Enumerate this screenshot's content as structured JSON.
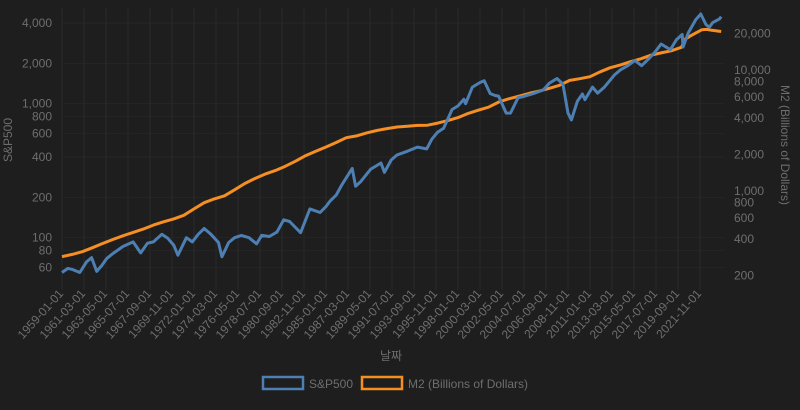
{
  "chart_data": {
    "type": "line",
    "xlabel": "날짜",
    "x_tick_labels": [
      "1959-01-01",
      "1961-03-01",
      "1963-05-01",
      "1965-07-01",
      "1967-09-01",
      "1969-11-01",
      "1972-01-01",
      "1974-03-01",
      "1976-05-01",
      "1978-07-01",
      "1980-09-01",
      "1982-11-01",
      "1985-01-01",
      "1987-03-01",
      "1989-05-01",
      "1991-07-01",
      "1993-09-01",
      "1995-11-01",
      "1998-01-01",
      "2000-03-01",
      "2002-05-01",
      "2004-07-01",
      "2006-09-01",
      "2008-11-01",
      "2011-01-01",
      "2013-03-01",
      "2015-05-01",
      "2017-07-01",
      "2019-09-01",
      "2021-11-01"
    ],
    "x_range": [
      "1959-01-01",
      "2023-12-01"
    ],
    "grid": true,
    "legend_position": "bottom",
    "y_left": {
      "label": "S&P500",
      "scale": "log",
      "range": [
        50,
        5000
      ],
      "ticks": [
        60,
        80,
        100,
        200,
        400,
        600,
        800,
        1000,
        2000,
        4000
      ],
      "tick_labels": [
        "60",
        "80",
        "100",
        "200",
        "400",
        "600",
        "800",
        "1,000",
        "2,000",
        "4,000"
      ]
    },
    "y_right": {
      "label": "M2 (Billions of Dollars)",
      "scale": "log",
      "range": [
        170,
        26000
      ],
      "ticks": [
        200,
        400,
        600,
        800,
        1000,
        2000,
        4000,
        6000,
        8000,
        10000,
        20000
      ],
      "tick_labels": [
        "200",
        "400",
        "600",
        "800",
        "1,000",
        "2,000",
        "4,000",
        "6,000",
        "8,000",
        "10,000",
        "20,000"
      ]
    },
    "series": [
      {
        "name": "S&P500",
        "axis": "left",
        "color": "#4e7fb3",
        "x": [
          "1959-01",
          "1959-08",
          "1960-01",
          "1960-10",
          "1961-06",
          "1961-12",
          "1962-06",
          "1962-12",
          "1963-06",
          "1964-01",
          "1965-01",
          "1966-01",
          "1966-10",
          "1967-06",
          "1968-01",
          "1968-11",
          "1969-06",
          "1970-01",
          "1970-06",
          "1971-04",
          "1971-11",
          "1972-06",
          "1973-01",
          "1973-09",
          "1974-06",
          "1974-10",
          "1975-06",
          "1976-01",
          "1976-09",
          "1977-06",
          "1978-03",
          "1978-09",
          "1979-06",
          "1980-03",
          "1980-11",
          "1981-06",
          "1982-07",
          "1983-06",
          "1984-06",
          "1985-01",
          "1985-06",
          "1986-01",
          "1986-08",
          "1987-08",
          "1987-12",
          "1988-06",
          "1989-06",
          "1990-06",
          "1990-10",
          "1991-06",
          "1992-01",
          "1993-01",
          "1994-01",
          "1994-12",
          "1995-06",
          "1996-01",
          "1996-08",
          "1997-06",
          "1998-01",
          "1998-08",
          "1998-10",
          "1999-06",
          "2000-03",
          "2000-08",
          "2001-03",
          "2001-09",
          "2002-01",
          "2002-10",
          "2003-03",
          "2003-12",
          "2004-06",
          "2005-06",
          "2006-06",
          "2007-01",
          "2007-10",
          "2008-05",
          "2008-11",
          "2009-03",
          "2009-10",
          "2010-04",
          "2010-07",
          "2011-04",
          "2011-10",
          "2012-06",
          "2013-06",
          "2014-01",
          "2014-10",
          "2015-06",
          "2016-02",
          "2016-10",
          "2017-06",
          "2018-01",
          "2018-12",
          "2019-07",
          "2020-02",
          "2020-03",
          "2020-09",
          "2021-06",
          "2021-12",
          "2022-06",
          "2022-10",
          "2023-02",
          "2023-10",
          "2023-12"
        ],
        "values": [
          55,
          59,
          58,
          55,
          66,
          71,
          56,
          62,
          70,
          76,
          86,
          93,
          77,
          91,
          93,
          106,
          99,
          88,
          74,
          100,
          93,
          106,
          117,
          106,
          92,
          72,
          92,
          100,
          104,
          100,
          90,
          104,
          102,
          110,
          136,
          132,
          109,
          164,
          154,
          171,
          188,
          208,
          250,
          329,
          242,
          262,
          325,
          361,
          307,
          380,
          415,
          441,
          474,
          460,
          543,
          614,
          655,
          904,
          963,
          1080,
          1000,
          1330,
          1440,
          1485,
          1190,
          1150,
          1140,
          850,
          850,
          1110,
          1130,
          1190,
          1270,
          1424,
          1540,
          1400,
          850,
          757,
          1040,
          1180,
          1070,
          1330,
          1200,
          1330,
          1640,
          1790,
          1930,
          2100,
          1920,
          2150,
          2440,
          2790,
          2530,
          2990,
          3280,
          2650,
          3370,
          4240,
          4670,
          3900,
          3720,
          4030,
          4290,
          4460
        ]
      },
      {
        "name": "M2 (Billions of Dollars)",
        "axis": "right",
        "color": "#f58f23",
        "x": [
          "1959-01",
          "1960-01",
          "1961-01",
          "1962-01",
          "1963-01",
          "1964-01",
          "1965-01",
          "1966-01",
          "1967-01",
          "1968-01",
          "1969-01",
          "1970-01",
          "1971-01",
          "1972-01",
          "1973-01",
          "1974-01",
          "1975-01",
          "1976-01",
          "1977-01",
          "1978-01",
          "1979-01",
          "1980-01",
          "1981-01",
          "1982-01",
          "1983-01",
          "1984-01",
          "1985-01",
          "1986-01",
          "1987-01",
          "1988-01",
          "1989-01",
          "1990-01",
          "1991-01",
          "1992-01",
          "1993-01",
          "1994-01",
          "1995-01",
          "1996-01",
          "1997-01",
          "1998-01",
          "1999-01",
          "2000-01",
          "2001-01",
          "2002-01",
          "2003-01",
          "2004-01",
          "2005-01",
          "2006-01",
          "2007-01",
          "2008-01",
          "2009-01",
          "2010-01",
          "2011-01",
          "2012-01",
          "2013-01",
          "2014-01",
          "2015-01",
          "2016-01",
          "2017-01",
          "2018-01",
          "2019-01",
          "2020-01",
          "2020-06",
          "2021-01",
          "2022-01",
          "2022-07",
          "2023-01",
          "2023-12"
        ],
        "values": [
          287,
          299,
          315,
          340,
          368,
          397,
          426,
          455,
          484,
          523,
          557,
          588,
          630,
          711,
          800,
          861,
          913,
          1024,
          1153,
          1268,
          1380,
          1475,
          1604,
          1763,
          1960,
          2133,
          2308,
          2517,
          2757,
          2852,
          3019,
          3164,
          3278,
          3380,
          3433,
          3486,
          3500,
          3640,
          3821,
          4040,
          4379,
          4649,
          4926,
          5433,
          5780,
          6070,
          6410,
          6690,
          7060,
          7480,
          8210,
          8480,
          8810,
          9660,
          10450,
          11020,
          11700,
          12380,
          13260,
          13850,
          14400,
          15400,
          18100,
          19350,
          21500,
          21650,
          21300,
          20800
        ]
      }
    ]
  }
}
